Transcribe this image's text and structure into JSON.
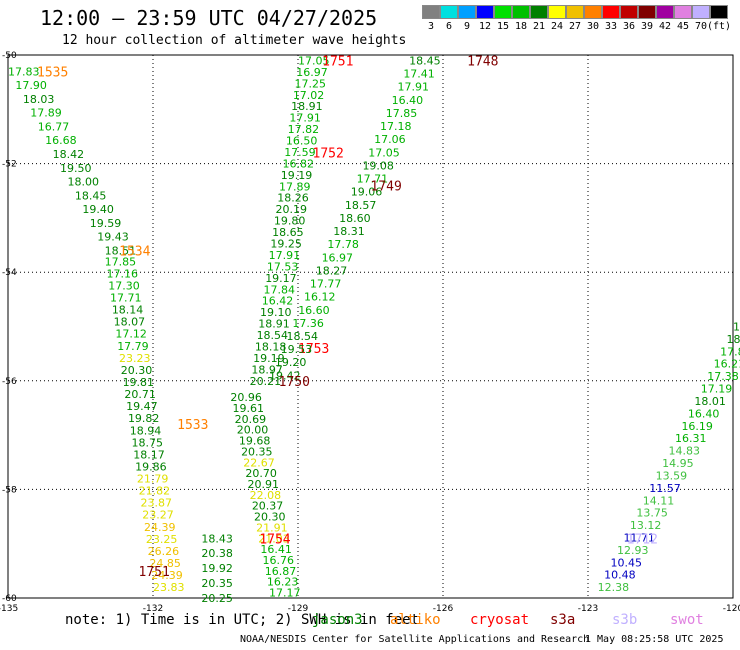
{
  "header": {
    "title": "12:00 – 23:59 UTC 04/27/2025",
    "subtitle": "12 hour collection of altimeter wave heights"
  },
  "legend": {
    "unit": "(ft)",
    "items": [
      {
        "label": "3",
        "color": "#808080"
      },
      {
        "label": "6",
        "color": "#00e0e0"
      },
      {
        "label": "9",
        "color": "#00a0ff"
      },
      {
        "label": "12",
        "color": "#0000ff"
      },
      {
        "label": "15",
        "color": "#00e000"
      },
      {
        "label": "18",
        "color": "#00c000"
      },
      {
        "label": "21",
        "color": "#008000"
      },
      {
        "label": "24",
        "color": "#ffff00"
      },
      {
        "label": "27",
        "color": "#f0c000"
      },
      {
        "label": "30",
        "color": "#ff8000"
      },
      {
        "label": "33",
        "color": "#ff0000"
      },
      {
        "label": "36",
        "color": "#c00000"
      },
      {
        "label": "39",
        "color": "#800000"
      },
      {
        "label": "42",
        "color": "#a000a0"
      },
      {
        "label": "45",
        "color": "#e080e0"
      },
      {
        "label": "70",
        "color": "#c0b0ff"
      },
      {
        "label": "",
        "color": "#000000"
      }
    ]
  },
  "axes": {
    "lon_ticks": [
      "-135",
      "-132",
      "-129",
      "-126",
      "-123",
      "-120"
    ],
    "lat_ticks": [
      "50",
      "52",
      "54",
      "56",
      "58",
      "60"
    ],
    "lat_labels_prefix": "-"
  },
  "footer": {
    "note": "note:  1) Time is in UTC; 2) SWH is in feet",
    "satellites": [
      {
        "name": "jason3",
        "color": "#008000"
      },
      {
        "name": "altiko",
        "color": "#ff8000"
      },
      {
        "name": "cryosat",
        "color": "#ff0000"
      },
      {
        "name": "s3a",
        "color": "#800000"
      },
      {
        "name": "s3b",
        "color": "#c0b0ff"
      },
      {
        "name": "swot",
        "color": "#e080e0"
      }
    ],
    "credit": "NOAA/NESDIS Center for Satellite Applications and Research",
    "timestamp": "1 May 08:25:58 UTC 2025"
  },
  "tracks": [
    {
      "time": "1535",
      "time_color": "#ff8000",
      "anchor": [
        -134.4,
        50.3
      ],
      "values": [
        "17.83",
        "17.90",
        "18.03",
        "17.89",
        "16.77",
        "16.68",
        "18.42",
        "19.50",
        "18.00",
        "18.45",
        "19.40",
        "19.59",
        "19.43",
        "18.51"
      ],
      "start": [
        -135.0,
        50.3
      ],
      "end": [
        -133.0,
        53.6
      ],
      "color": "#008000"
    },
    {
      "time": "1534",
      "time_color": "#ff8000",
      "anchor": [
        -132.7,
        53.6
      ],
      "values": [
        "17.85",
        "17.16",
        "17.30",
        "17.71",
        "18.14",
        "18.07",
        "17.12",
        "17.79",
        "23.23",
        "20.30",
        "19.81",
        "20.71",
        "19.47",
        "19.82",
        "18.94",
        "18.75",
        "18.17",
        "19.86",
        "21.79",
        "21.82",
        "23.87",
        "23.27",
        "24.39",
        "23.25",
        "26.26",
        "24.85",
        "24.39",
        "23.83"
      ],
      "start": [
        -133.0,
        53.8
      ],
      "end": [
        -132.0,
        59.8
      ],
      "color": "#008000"
    },
    {
      "time": "1751",
      "time_color": "#ff0000",
      "anchor": [
        -128.5,
        50.1
      ],
      "values": [
        "17.05",
        "16.97",
        "17.25",
        "17.02",
        "18.91",
        "17.91",
        "17.82",
        "16.50",
        "17.59",
        "16.82",
        "19.19",
        "17.89",
        "18.26",
        "20.19",
        "19.80",
        "18.65",
        "19.25",
        "17.91",
        "17.53",
        "19.17",
        "17.84",
        "16.42",
        "19.10",
        "18.91",
        "18.54",
        "18.18",
        "19.19",
        "18.97",
        "20.21"
      ],
      "start": [
        -129.0,
        50.1
      ],
      "end": [
        -130.0,
        56.0
      ],
      "color": "#008000"
    },
    {
      "time": "1752",
      "time_color": "#ff0000",
      "anchor": [
        -128.7,
        51.8
      ],
      "values": [],
      "start": [
        -128.7,
        51.8
      ],
      "end": [
        -128.7,
        51.8
      ],
      "color": "#008000"
    },
    {
      "time": "1753",
      "time_color": "#ff0000",
      "anchor": [
        -129.0,
        55.4
      ],
      "values": [],
      "start": [
        -129.0,
        55.4
      ],
      "end": [
        -129.0,
        55.4
      ],
      "color": "#008000"
    },
    {
      "time": "1748",
      "time_color": "#800000",
      "anchor": [
        -125.5,
        50.1
      ],
      "values": [
        "18.45",
        "17.41",
        "17.91",
        "16.40",
        "17.85",
        "17.18",
        "17.06",
        "17.05",
        "19.08",
        "17.71",
        "19.06",
        "18.57",
        "18.60",
        "18.31",
        "17.78",
        "16.97",
        "18.27",
        "17.77",
        "16.12",
        "16.60",
        "17.36",
        "18.54",
        "19.53",
        "19.20",
        "19.42"
      ],
      "start": [
        -126.7,
        50.1
      ],
      "end": [
        -129.6,
        55.9
      ],
      "color": "#008000"
    },
    {
      "time": "1749",
      "time_color": "#800000",
      "anchor": [
        -127.5,
        52.4
      ],
      "values": [],
      "start": [
        -127.5,
        52.4
      ],
      "end": [
        -127.5,
        52.4
      ],
      "color": "#008000"
    },
    {
      "time": "1750",
      "time_color": "#800000",
      "anchor": [
        -129.4,
        56.0
      ],
      "values": [
        "20.96",
        "19.61",
        "20.69",
        "20.00",
        "19.68",
        "20.35",
        "22.67",
        "20.70",
        "20.91",
        "22.08",
        "20.37",
        "20.30",
        "21.91",
        "21.03",
        "16.41",
        "16.76",
        "16.87",
        "16.23",
        "17.17"
      ],
      "start": [
        -130.4,
        56.3
      ],
      "end": [
        -129.6,
        59.9
      ],
      "color": "#008000"
    },
    {
      "time": "1533",
      "time_color": "#ff8000",
      "anchor": [
        -131.5,
        56.8
      ],
      "values": [],
      "start": [
        -131.5,
        56.8
      ],
      "end": [
        -131.5,
        56.8
      ],
      "color": "#008000"
    },
    {
      "time": "1754",
      "time_color": "#ff0000",
      "anchor": [
        -129.8,
        58.9
      ],
      "values": [
        "18.43",
        "20.38",
        "19.92",
        "20.35",
        "20.25"
      ],
      "start": [
        -131.0,
        58.9
      ],
      "end": [
        -131.0,
        60.0
      ],
      "color": "#008000"
    },
    {
      "time": "1751",
      "time_color": "#800000",
      "anchor": [
        -132.3,
        59.5
      ],
      "values": [],
      "start": [
        -132.3,
        59.5
      ],
      "end": [
        -132.3,
        59.5
      ],
      "color": "#800000"
    },
    {
      "time": "1712",
      "time_color": "#c0b0ff",
      "anchor": [
        -122.2,
        58.9
      ],
      "values": [
        "18.01",
        "18.06",
        "17.81",
        "16.21",
        "17.38",
        "17.19",
        "18.01",
        "16.40",
        "16.19",
        "16.31",
        "14.83",
        "14.95",
        "13.59",
        "11.57",
        "14.11",
        "13.75",
        "13.12",
        "11.71",
        "12.93",
        "10.45",
        "10.48",
        "12.38"
      ],
      "start": [
        -120.0,
        55.0
      ],
      "end": [
        -122.8,
        59.8
      ],
      "color": "#00c000"
    }
  ]
}
